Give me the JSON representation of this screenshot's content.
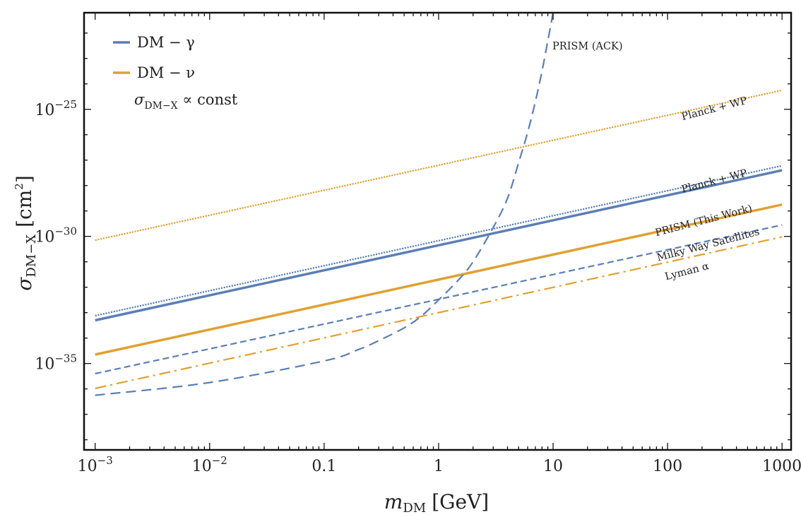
{
  "chart_data": {
    "type": "line",
    "title": "",
    "xscale": "log",
    "yscale": "log",
    "xlim": [
      0.0008,
      1200
    ],
    "ylim_log10": [
      -38.4,
      -21.2
    ],
    "xlabel": {
      "main": "m",
      "sub": "DM",
      "unit": "[GeV]"
    },
    "ylabel": {
      "main": "σ",
      "sub": "DM−X",
      "unit": "[cm",
      "unit_sup": "2",
      "unit_close": "]"
    },
    "x_ticks": [
      {
        "value": 0.001,
        "base": "10",
        "exp": "−3"
      },
      {
        "value": 0.01,
        "base": "10",
        "exp": "−2"
      },
      {
        "value": 0.1,
        "label": "0.1"
      },
      {
        "value": 1,
        "label": "1"
      },
      {
        "value": 10,
        "label": "10"
      },
      {
        "value": 100,
        "label": "100"
      },
      {
        "value": 1000,
        "label": "1000"
      }
    ],
    "y_ticks": [
      {
        "log10": -25,
        "base": "10",
        "exp": "−25"
      },
      {
        "log10": -30,
        "base": "10",
        "exp": "−30"
      },
      {
        "log10": -35,
        "base": "10",
        "exp": "−35"
      }
    ],
    "legend": {
      "position": "top-left",
      "entries": [
        {
          "label": "DM − γ",
          "color": "#5b7fb5"
        },
        {
          "label": "DM − ν",
          "color": "#e1a031"
        }
      ],
      "note": "σ",
      "note_sub": "DM−X",
      "note_tail": " ∝ const"
    },
    "series": [
      {
        "name": "DM−ν Planck + WP",
        "color": "#e1a031",
        "style": "dotted",
        "width": 2.2,
        "x": [
          0.001,
          1000
        ],
        "log10_y": [
          -30.15,
          -24.25
        ]
      },
      {
        "name": "DM−γ Planck + WP",
        "color": "#5b7fb5",
        "style": "dotted",
        "width": 2.2,
        "x": [
          0.001,
          1000
        ],
        "log10_y": [
          -33.12,
          -27.22
        ]
      },
      {
        "name": "DM−γ PRISM (This Work)",
        "color": "#5b7fb5",
        "style": "solid",
        "width": 3.5,
        "x": [
          0.001,
          1000
        ],
        "log10_y": [
          -33.3,
          -27.4
        ]
      },
      {
        "name": "DM−ν PRISM (This Work)",
        "color": "#e1a031",
        "style": "solid",
        "width": 3.5,
        "x": [
          0.001,
          1000
        ],
        "log10_y": [
          -34.65,
          -28.75
        ]
      },
      {
        "name": "DM−γ Milky Way Satellites",
        "color": "#5b7fb5",
        "style": "dashed-short",
        "width": 2.2,
        "x": [
          0.001,
          1000
        ],
        "log10_y": [
          -35.4,
          -29.55
        ]
      },
      {
        "name": "DM−ν Lyman α",
        "color": "#e1a031",
        "style": "dashdot",
        "width": 2.2,
        "x": [
          0.001,
          1000
        ],
        "log10_y": [
          -35.98,
          -30.02
        ]
      },
      {
        "name": "DM−γ PRISM (ACK)",
        "color": "#5b7fb5",
        "style": "dashed-long",
        "width": 2.2,
        "x": [
          0.001,
          0.01,
          0.1,
          0.2,
          0.3,
          0.5,
          0.7,
          1,
          1.5,
          2,
          3,
          4,
          5,
          6,
          7,
          8,
          9,
          10
        ],
        "log10_y": [
          -36.25,
          -35.75,
          -34.9,
          -34.45,
          -34.1,
          -33.6,
          -33.15,
          -32.5,
          -31.7,
          -31.0,
          -29.65,
          -28.5,
          -27.1,
          -25.9,
          -24.7,
          -23.5,
          -22.3,
          -21.2
        ]
      }
    ],
    "annotations": [
      {
        "text": "PRISM (ACK)",
        "x": 20,
        "log10_y": -22.65,
        "angle": 0
      },
      {
        "text": "Planck + WP",
        "x": 260,
        "log10_y": -25.1,
        "angle": -14.5
      },
      {
        "text": "Planck + WP",
        "x": 260,
        "log10_y": -27.95,
        "angle": -14.5
      },
      {
        "text": "PRISM (This Work)",
        "x": 210,
        "log10_y": -29.5,
        "angle": -14.5
      },
      {
        "text": "Milky Way Satellites",
        "x": 230,
        "log10_y": -30.45,
        "angle": -14.5
      },
      {
        "text": "Lyman α",
        "x": 150,
        "log10_y": -31.5,
        "angle": -14.5
      }
    ]
  }
}
